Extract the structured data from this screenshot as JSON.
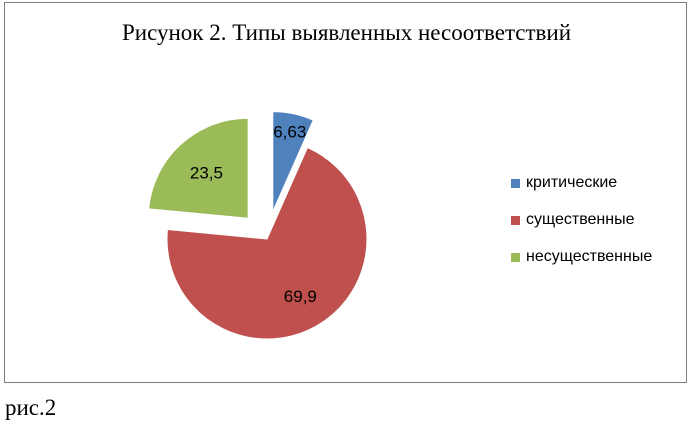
{
  "chart_data": {
    "type": "pie",
    "title": "Рисунок 2. Типы выявленных несоответствий",
    "categories": [
      "критические",
      "существенные",
      "несущественные"
    ],
    "values": [
      6.63,
      69.9,
      23.5
    ],
    "value_labels": [
      "6,63",
      "69,9",
      "23,5"
    ],
    "colors": [
      "#4f81bd",
      "#c0504d",
      "#9bbb59"
    ],
    "exploded": [
      true,
      false,
      true
    ],
    "legend_position": "right"
  },
  "caption": "рис.2"
}
